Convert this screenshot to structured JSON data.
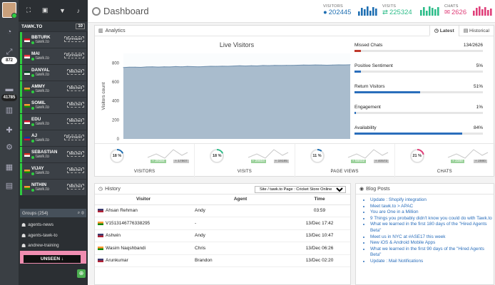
{
  "rail": {
    "badges": [
      "872",
      "41785"
    ]
  },
  "agents_panel": {
    "property": "TAWK.TO",
    "count": "10",
    "agents": [
      {
        "name": "BBTURK",
        "sub": "tawk.to",
        "tag": "Rynnazel",
        "status": "online",
        "flag": "tr"
      },
      {
        "name": "MAI",
        "sub": "tawk.to",
        "tag": "Rynnazel",
        "status": "online",
        "flag": "sg"
      },
      {
        "name": "DANYAL",
        "sub": "tawk.to",
        "tag": "Mitchell",
        "status": "online",
        "flag": "pk"
      },
      {
        "name": "AMMY",
        "sub": "tawk.to",
        "tag": "Mitchell",
        "status": "online",
        "flag": "in"
      },
      {
        "name": "SOMIL",
        "sub": "tawk.to",
        "tag": "Mitchell",
        "status": "online",
        "flag": "in"
      },
      {
        "name": "EDU",
        "sub": "tawk.to",
        "tag": "Mitchell",
        "status": "online",
        "flag": "id"
      },
      {
        "name": "AJ",
        "sub": "tawk.to",
        "tag": "Rynnazel",
        "status": "online",
        "flag": "ph"
      },
      {
        "name": "SEBASTIAN",
        "sub": "tawk.to",
        "tag": "Mitchell",
        "status": "online",
        "flag": "ch"
      },
      {
        "name": "VIJAY",
        "sub": "tawk.to",
        "tag": "Mitchell",
        "status": "online",
        "flag": "in"
      },
      {
        "name": "NITHIN",
        "sub": "tawk.to",
        "tag": "Mitchell",
        "status": "online",
        "flag": "in"
      }
    ],
    "groups_label": "Groups (254)",
    "groups": [
      "agents-news",
      "agents-tawk-to",
      "andrew-training"
    ],
    "unseen_label": "UNSEEN ↓"
  },
  "header": {
    "title": "Dashboard",
    "visitors_label": "VISITORS",
    "visitors_value": "202445",
    "visits_label": "VISITS",
    "visits_value": "225324",
    "chats_label": "CHATS",
    "chats_value": "2626",
    "colors": {
      "visitors": "#1f6fb2",
      "visits": "#2ebd8a",
      "chats": "#e0407a"
    }
  },
  "analytics": {
    "title": "Analytics",
    "tab_latest": "Latest",
    "tab_historical": "Historical",
    "chart_data": {
      "type": "area",
      "title": "Live Visitors",
      "ylabel": "Visitors count",
      "xlabel": "",
      "ylim": [
        0,
        900
      ],
      "yticks": [
        "0",
        "200",
        "400",
        "600",
        "800"
      ],
      "values": [
        752,
        755,
        756,
        754,
        758,
        759,
        757,
        760,
        758,
        762,
        760,
        763,
        761,
        760,
        762,
        765,
        764,
        766,
        765,
        768,
        770,
        768,
        771,
        769,
        773,
        772,
        774,
        773,
        775,
        774,
        776,
        778,
        777,
        779,
        778,
        776,
        778,
        780,
        779,
        781
      ]
    },
    "metrics": [
      {
        "label": "Missed Chats",
        "value": "134/2626",
        "fraction": 0.05,
        "color": "#c0392b"
      },
      {
        "label": "Positive Sentiment",
        "value": "5%",
        "fraction": 0.05,
        "color": "#2a6ebb"
      },
      {
        "label": "Return Visitors",
        "value": "51%",
        "fraction": 0.51,
        "color": "#2a6ebb"
      },
      {
        "label": "Engagement",
        "value": "1%",
        "fraction": 0.01,
        "color": "#2a6ebb"
      },
      {
        "label": "Availability",
        "value": "84%",
        "fraction": 0.84,
        "color": "#2a6ebb"
      }
    ],
    "gauges": [
      {
        "label": "VISITORS",
        "pct": "18 %",
        "fraction": 0.18,
        "color": "#1f6fb2",
        "tag1": "+ 29384",
        "tag2": "+ 17807"
      },
      {
        "label": "VISITS",
        "pct": "18 %",
        "fraction": 0.18,
        "color": "#2ebd8a",
        "tag1": "+ 29604",
        "tag2": "+ 19195"
      },
      {
        "label": "PAGE VIEWS",
        "pct": "11 %",
        "fraction": 0.11,
        "color": "#1f6fb2",
        "tag1": "+ 58602",
        "tag2": "+ 40572"
      },
      {
        "label": "CHATS",
        "pct": "21 %",
        "fraction": 0.21,
        "color": "#e0407a",
        "tag1": "+ 2388",
        "tag2": "+ 2980"
      }
    ]
  },
  "history": {
    "title": "History",
    "filter": "Site / tawk.to Page : Cricket Store Online",
    "columns": [
      "Visitor",
      "Agent",
      "Time"
    ],
    "rows": [
      {
        "visitor": "Ahsan Rehman",
        "agent": "Andy",
        "time": "03:59",
        "flag": "us"
      },
      {
        "visitor": "V1513146776338295",
        "agent": "-",
        "time": "13/Dec 17:42",
        "flag": "in"
      },
      {
        "visitor": "Ashwin",
        "agent": "Andy",
        "time": "13/Dec 10:47",
        "flag": "us"
      },
      {
        "visitor": "Wasim Naqshbandi",
        "agent": "Chris",
        "time": "13/Dec 06:26",
        "flag": "in"
      },
      {
        "visitor": "Arunkumar",
        "agent": "Brandon",
        "time": "13/Dec 02:20",
        "flag": "us"
      }
    ]
  },
  "blog": {
    "title": "Blog Posts",
    "posts": [
      "Update : Shopify integration",
      "Meet tawk.to > APAC",
      "You are One in a Million",
      "9 Things you probably didn't know you could do with Tawk.to",
      "What we learned in the first 180 days of the \"Hired Agents Beta\"",
      "Meet us in NYC at #ASE17 this week",
      "New iOS & Android Mobile Apps",
      "What we learned in the first 90 days of the \"Hired Agents Beta\"",
      "Update : Mail Notifications"
    ]
  }
}
